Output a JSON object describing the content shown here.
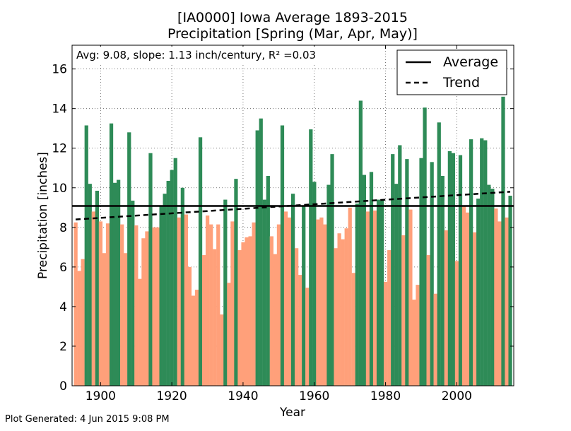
{
  "chart_data": {
    "type": "bar",
    "title_line1": "[IA0000] Iowa Average 1893-2015",
    "title_line2": "Precipitation [Spring (Mar, Apr, May)]",
    "xlabel": "Year",
    "ylabel": "Precipitation [inches]",
    "annotation": "Avg: 9.08, slope: 1.13 inch/century, R² =0.03",
    "footer": "Plot Generated: 4 Jun 2015 9:08 PM",
    "xlim": [
      1892,
      2016
    ],
    "ylim": [
      0,
      17.2
    ],
    "xticks": [
      1900,
      1920,
      1940,
      1960,
      1980,
      2000
    ],
    "yticks": [
      0,
      2,
      4,
      6,
      8,
      10,
      12,
      14,
      16
    ],
    "grid": true,
    "legend_position": "top-right",
    "legend": [
      {
        "label": "Average",
        "style": "solid"
      },
      {
        "label": "Trend",
        "style": "dashed"
      }
    ],
    "average": 9.08,
    "trend": {
      "start": [
        1893,
        8.4
      ],
      "end": [
        2015,
        9.8
      ]
    },
    "colors": {
      "above": "#2e8b57",
      "below": "#ffa07a",
      "line": "#000000",
      "grid": "#555555"
    },
    "x": [
      1893,
      1894,
      1895,
      1896,
      1897,
      1898,
      1899,
      1900,
      1901,
      1902,
      1903,
      1904,
      1905,
      1906,
      1907,
      1908,
      1909,
      1910,
      1911,
      1912,
      1913,
      1914,
      1915,
      1916,
      1917,
      1918,
      1919,
      1920,
      1921,
      1922,
      1923,
      1924,
      1925,
      1926,
      1927,
      1928,
      1929,
      1930,
      1931,
      1932,
      1933,
      1934,
      1935,
      1936,
      1937,
      1938,
      1939,
      1940,
      1941,
      1942,
      1943,
      1944,
      1945,
      1946,
      1947,
      1948,
      1949,
      1950,
      1951,
      1952,
      1953,
      1954,
      1955,
      1956,
      1957,
      1958,
      1959,
      1960,
      1961,
      1962,
      1963,
      1964,
      1965,
      1966,
      1967,
      1968,
      1969,
      1970,
      1971,
      1972,
      1973,
      1974,
      1975,
      1976,
      1977,
      1978,
      1979,
      1980,
      1981,
      1982,
      1983,
      1984,
      1985,
      1986,
      1987,
      1988,
      1989,
      1990,
      1991,
      1992,
      1993,
      1994,
      1995,
      1996,
      1997,
      1998,
      1999,
      2000,
      2001,
      2002,
      2003,
      2004,
      2005,
      2006,
      2007,
      2008,
      2009,
      2010,
      2011,
      2012,
      2013,
      2014,
      2015
    ],
    "values": [
      8.25,
      5.8,
      6.4,
      13.15,
      10.2,
      8.8,
      9.85,
      8.3,
      6.7,
      8.2,
      13.25,
      10.25,
      10.4,
      8.15,
      6.7,
      12.8,
      9.35,
      8.1,
      5.4,
      7.45,
      7.8,
      11.75,
      8.0,
      8.0,
      9.1,
      9.7,
      10.35,
      10.9,
      11.5,
      8.5,
      10.0,
      8.65,
      6.0,
      4.55,
      4.85,
      12.55,
      6.6,
      8.6,
      8.15,
      6.9,
      8.15,
      3.6,
      9.4,
      5.2,
      8.3,
      10.45,
      6.85,
      7.25,
      7.5,
      7.55,
      8.25,
      12.9,
      13.5,
      9.4,
      10.6,
      7.55,
      6.65,
      8.15,
      13.15,
      8.8,
      8.5,
      9.7,
      6.95,
      5.6,
      9.1,
      4.95,
      12.95,
      10.3,
      8.4,
      8.5,
      8.15,
      10.15,
      11.7,
      6.95,
      7.7,
      7.4,
      7.95,
      9.0,
      5.7,
      9.2,
      14.4,
      10.65,
      8.8,
      10.8,
      8.85,
      9.4,
      9.35,
      5.25,
      6.85,
      11.7,
      10.2,
      12.15,
      7.6,
      11.45,
      8.9,
      4.35,
      5.1,
      11.5,
      14.05,
      6.6,
      11.3,
      4.65,
      13.3,
      10.6,
      7.85,
      11.85,
      11.75,
      6.3,
      11.65,
      9.05,
      8.75,
      12.45,
      7.75,
      9.45,
      12.5,
      12.4,
      10.15,
      9.95,
      8.95,
      8.3,
      14.6,
      8.5,
      9.6
    ]
  }
}
